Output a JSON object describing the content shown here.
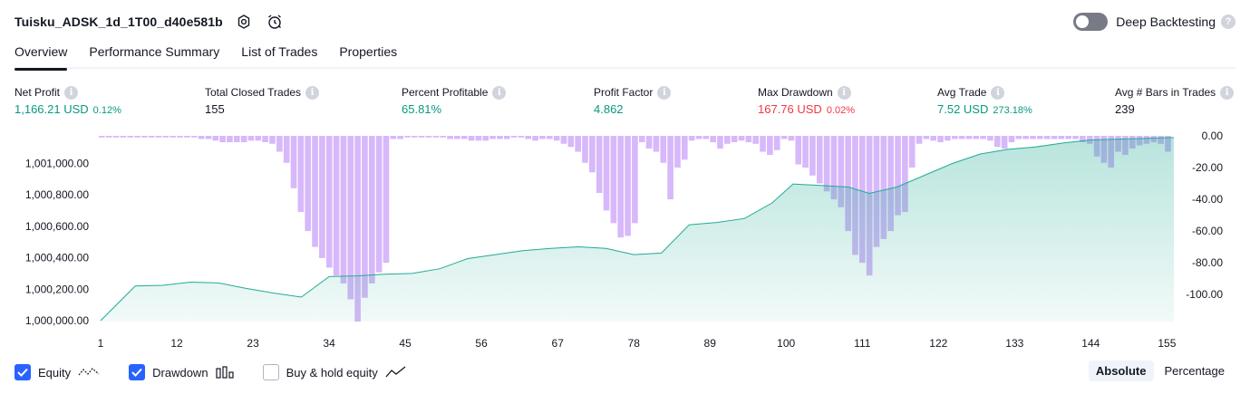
{
  "header": {
    "title": "Tuisku_ADSK_1d_1T00_d40e581b",
    "deep_backtesting_label": "Deep Backtesting",
    "help_glyph": "?"
  },
  "tabs": [
    {
      "label": "Overview",
      "active": true
    },
    {
      "label": "Performance Summary",
      "active": false
    },
    {
      "label": "List of Trades",
      "active": false
    },
    {
      "label": "Properties",
      "active": false
    }
  ],
  "metrics": {
    "info_glyph": "i",
    "net_profit": {
      "label": "Net Profit",
      "value": "1,166.21 USD",
      "sub": "0.12%"
    },
    "total_closed_trades": {
      "label": "Total Closed Trades",
      "value": "155"
    },
    "percent_profitable": {
      "label": "Percent Profitable",
      "value": "65.81%"
    },
    "profit_factor": {
      "label": "Profit Factor",
      "value": "4.862"
    },
    "max_drawdown": {
      "label": "Max Drawdown",
      "value": "167.76 USD",
      "sub": "0.02%"
    },
    "avg_trade": {
      "label": "Avg Trade",
      "value": "7.52 USD",
      "sub": "273.18%"
    },
    "avg_bars": {
      "label": "Avg # Bars in Trades",
      "value": "239"
    }
  },
  "legend": {
    "equity": "Equity",
    "drawdown": "Drawdown",
    "buy_hold": "Buy & hold equity"
  },
  "mode": {
    "absolute": "Absolute",
    "percentage": "Percentage"
  },
  "colors": {
    "profit": "#089981",
    "loss": "#f23645",
    "equity_line": "#22ab94",
    "drawdown_bar": "#d7b8fa",
    "accent": "#2962ff"
  },
  "chart_data": {
    "type": "area",
    "x_ticks": [
      "1",
      "12",
      "23",
      "34",
      "45",
      "56",
      "67",
      "78",
      "89",
      "100",
      "111",
      "122",
      "133",
      "144",
      "155"
    ],
    "x_range": [
      1,
      156
    ],
    "left_axis": {
      "ticks": [
        "1,000,000.00",
        "1,000,200.00",
        "1,000,400.00",
        "1,000,600.00",
        "1,000,800.00",
        "1,001,000.00"
      ],
      "range": [
        1000000,
        1001170
      ]
    },
    "right_axis": {
      "ticks": [
        "0.00",
        "-20.00",
        "-40.00",
        "-60.00",
        "-80.00",
        "-100.00"
      ],
      "range": [
        0,
        -117
      ]
    },
    "equity": {
      "name": "Equity",
      "x": [
        1,
        6,
        10,
        14,
        18,
        22,
        26,
        30,
        34,
        38,
        42,
        46,
        50,
        54,
        58,
        62,
        66,
        70,
        74,
        78,
        82,
        86,
        90,
        94,
        98,
        101,
        105,
        109,
        112,
        116,
        120,
        124,
        128,
        132,
        136,
        140,
        144,
        148,
        152,
        156
      ],
      "values": [
        1000000,
        1000220,
        1000225,
        1000245,
        1000240,
        1000205,
        1000175,
        1000150,
        1000280,
        1000285,
        1000295,
        1000300,
        1000330,
        1000395,
        1000420,
        1000445,
        1000460,
        1000470,
        1000460,
        1000420,
        1000430,
        1000610,
        1000625,
        1000650,
        1000750,
        1000870,
        1000860,
        1000850,
        1000810,
        1000850,
        1000925,
        1001000,
        1001060,
        1001090,
        1001105,
        1001130,
        1001150,
        1001155,
        1001160,
        1001165
      ]
    },
    "drawdown": {
      "name": "Drawdown",
      "values": [
        -1,
        -1,
        -1,
        -1,
        -1,
        -1,
        -1,
        -1,
        -1,
        -1,
        -1,
        -1,
        -1,
        -1,
        -2,
        -2,
        -3,
        -4,
        -4,
        -4,
        -4,
        -3,
        -3,
        -4,
        -5,
        -10,
        -17,
        -33,
        -48,
        -60,
        -70,
        -77,
        -83,
        -88,
        -93,
        -103,
        -117,
        -102,
        -93,
        -86,
        -80,
        -2,
        -2,
        -1,
        -1,
        -1,
        -1,
        -1,
        -1,
        -2,
        -2,
        -2,
        -3,
        -3,
        -3,
        -2,
        -2,
        -2,
        -1,
        -1,
        -2,
        -3,
        -2,
        -2,
        -3,
        -5,
        -7,
        -10,
        -17,
        -23,
        -36,
        -47,
        -55,
        -64,
        -63,
        -55,
        -4,
        -8,
        -10,
        -17,
        -40,
        -20,
        -15,
        -3,
        -2,
        -2,
        -4,
        -8,
        -5,
        -4,
        -3,
        -4,
        -5,
        -10,
        -12,
        -9,
        -2,
        -3,
        -18,
        -20,
        -25,
        -30,
        -35,
        -40,
        -45,
        -60,
        -75,
        -80,
        -88,
        -70,
        -65,
        -60,
        -50,
        -48,
        -20,
        -5,
        -2,
        -3,
        -4,
        -3,
        -2,
        -2,
        -2,
        -2,
        -2,
        -3,
        -7,
        -8,
        -4,
        -2,
        -2,
        -2,
        -2,
        -2,
        -2,
        -2,
        -2,
        -2,
        -4,
        -5,
        -13,
        -17,
        -20,
        -10,
        -12,
        -8,
        -6,
        -5,
        -4,
        -5,
        -10
      ]
    },
    "grid": false,
    "legend_position": "bottom-left"
  }
}
